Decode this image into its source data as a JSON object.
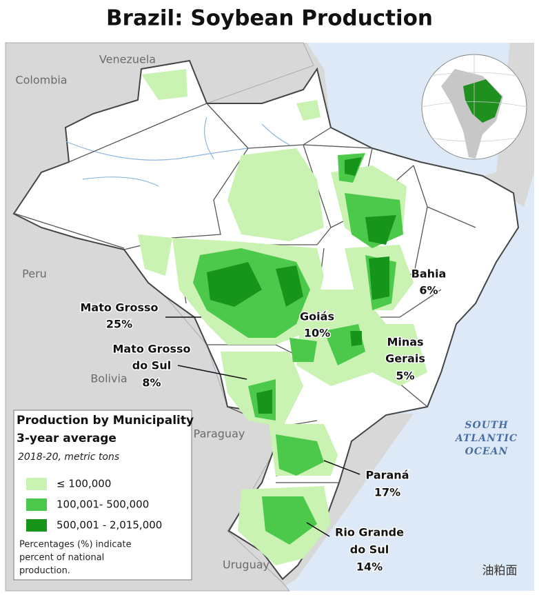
{
  "title": "Brazil: Soybean Production",
  "countries": [
    "Venezuela",
    "Colombia",
    "Peru",
    "Bolivia",
    "Paraguay",
    "Uruguay"
  ],
  "ocean": [
    "SOUTH",
    "ATLANTIC",
    "OCEAN"
  ],
  "states": [
    {
      "name": [
        "Mato Grosso"
      ],
      "share": "25%"
    },
    {
      "name": [
        "Goiás"
      ],
      "share": "10%"
    },
    {
      "name": [
        "Bahia"
      ],
      "share": "6%"
    },
    {
      "name": [
        "Mato Grosso",
        "do Sul"
      ],
      "share": "8%"
    },
    {
      "name": [
        "Minas",
        "Gerais"
      ],
      "share": "5%"
    },
    {
      "name": [
        "Paraná"
      ],
      "share": "17%"
    },
    {
      "name": [
        "Rio Grande",
        "do Sul"
      ],
      "share": "14%"
    }
  ],
  "legend": {
    "title": [
      "Production by Municipality",
      "3-year average"
    ],
    "subtitle": "2018-20, metric tons",
    "items": [
      {
        "label": "≤ 100,000",
        "color": "#c9f2b3"
      },
      {
        "label": "100,001- 500,000",
        "color": "#4cc94a"
      },
      {
        "label": "500,001 - 2,015,000",
        "color": "#17951b"
      }
    ],
    "note": [
      "Percentages (%) indicate",
      "percent of national",
      "production."
    ]
  },
  "watermark": "油粕面"
}
